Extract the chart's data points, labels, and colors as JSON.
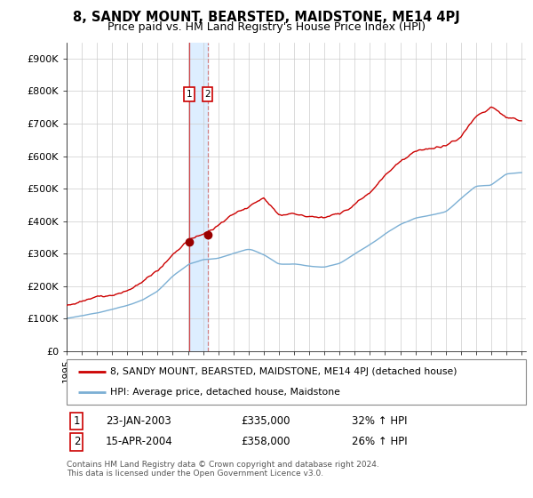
{
  "title": "8, SANDY MOUNT, BEARSTED, MAIDSTONE, ME14 4PJ",
  "subtitle": "Price paid vs. HM Land Registry's House Price Index (HPI)",
  "hpi_label": "HPI: Average price, detached house, Maidstone",
  "property_label": "8, SANDY MOUNT, BEARSTED, MAIDSTONE, ME14 4PJ (detached house)",
  "sale1_date": "23-JAN-2003",
  "sale1_price": "£335,000",
  "sale1_hpi": "32% ↑ HPI",
  "sale2_date": "15-APR-2004",
  "sale2_price": "£358,000",
  "sale2_hpi": "26% ↑ HPI",
  "footer": "Contains HM Land Registry data © Crown copyright and database right 2024.\nThis data is licensed under the Open Government Licence v3.0.",
  "ylim": [
    0,
    950000
  ],
  "yticks": [
    0,
    100000,
    200000,
    300000,
    400000,
    500000,
    600000,
    700000,
    800000,
    900000
  ],
  "ytick_labels": [
    "£0",
    "£100K",
    "£200K",
    "£300K",
    "£400K",
    "£500K",
    "£600K",
    "£700K",
    "£800K",
    "£900K"
  ],
  "property_color": "#cc0000",
  "hpi_color": "#7bafd4",
  "sale_marker_color": "#990000",
  "vline1_color": "#cc0000",
  "vline2_color": "#cc6666",
  "span_color": "#ddeeff",
  "background_color": "#ffffff",
  "grid_color": "#cccccc",
  "sale1_year": 2003.065,
  "sale2_year": 2004.29
}
